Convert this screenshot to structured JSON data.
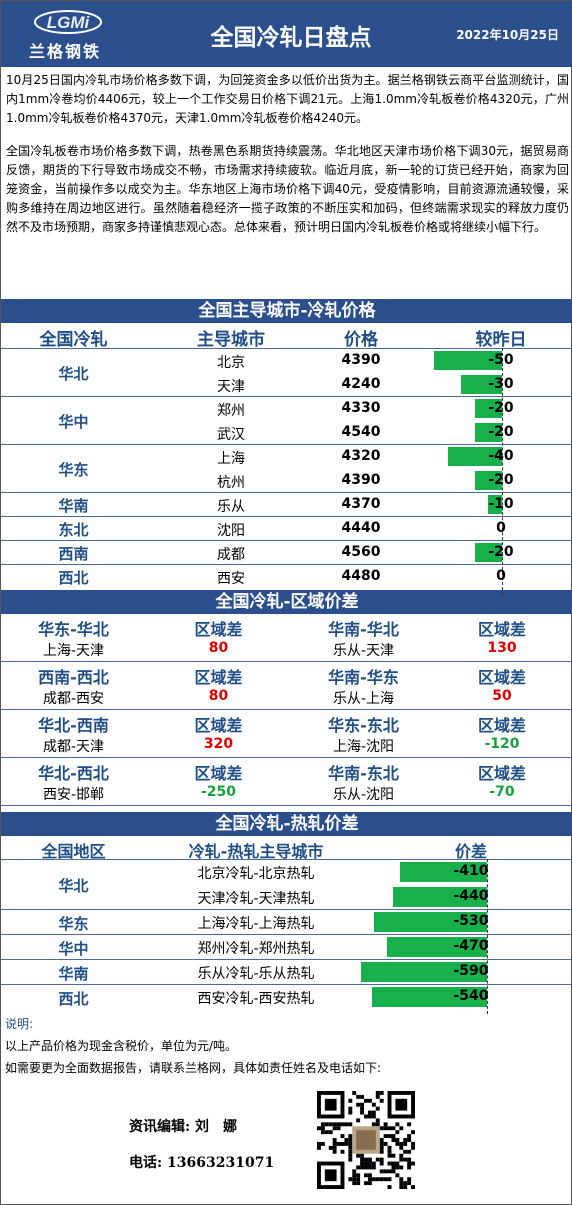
{
  "header": {
    "logo_mark": "LGMi",
    "logo_text": "兰格钢铁",
    "title": "全国冷轧日盘点",
    "date": "2022年10月25日"
  },
  "intro": {
    "p1": "10月25日国内冷轧市场价格多数下调，为回笼资金多以低价出货为主。据兰格钢铁云商平台监测统计，国内1mm冷卷均价4406元，较上一个工作交易日价格下调21元。上海1.0mm冷轧板卷价格4320元，广州1.0mm冷轧板卷价格4370元，天津1.0mm冷轧板卷价格4240元。",
    "p2": "全国冷轧板卷市场价格多数下调，热卷黑色系期货持续震荡。华北地区天津市场价格下调30元，据贸易商反馈，期货的下行导致市场成交不畅，市场需求持续疲软。临近月底，新一轮的订货已经开始，商家为回笼资金，当前操作多以成交为主。华东地区上海市场价格下调40元，受疫情影响，目前资源流通较慢，采购多维持在周边地区进行。虽然随着稳经济一揽子政策的不断压实和加码，但终端需求现实的释放力度仍然不及市场预期，商家多持谨慎悲观心态。总体来看，预计明日国内冷轧板卷价格或将继续小幅下行。"
  },
  "table1": {
    "section_title": "全国主导城市-冷轧价格",
    "headers": {
      "region": "全国冷轧",
      "city": "主导城市",
      "price": "价格",
      "change": "较昨日"
    },
    "groups": [
      {
        "region": "华北",
        "rows": [
          {
            "city": "北京",
            "price": "4390",
            "change": -50
          },
          {
            "city": "天津",
            "price": "4240",
            "change": -30
          }
        ]
      },
      {
        "region": "华中",
        "rows": [
          {
            "city": "郑州",
            "price": "4330",
            "change": -20
          },
          {
            "city": "武汉",
            "price": "4540",
            "change": -20
          }
        ]
      },
      {
        "region": "华东",
        "rows": [
          {
            "city": "上海",
            "price": "4320",
            "change": -40
          },
          {
            "city": "杭州",
            "price": "4390",
            "change": -20
          }
        ]
      },
      {
        "region": "华南",
        "rows": [
          {
            "city": "乐从",
            "price": "4370",
            "change": -10
          }
        ]
      },
      {
        "region": "东北",
        "rows": [
          {
            "city": "沈阳",
            "price": "4440",
            "change": 0
          }
        ]
      },
      {
        "region": "西南",
        "rows": [
          {
            "city": "成都",
            "price": "4560",
            "change": -20
          }
        ]
      },
      {
        "region": "西北",
        "rows": [
          {
            "city": "西安",
            "price": "4480",
            "change": 0
          }
        ]
      }
    ]
  },
  "table2": {
    "section_title": "全国冷轧-区域价差",
    "diff_label": "区域差",
    "rows": [
      {
        "left": {
          "pair": "华东-华北",
          "cities": "上海-天津",
          "value": 80
        },
        "right": {
          "pair": "华南-华北",
          "cities": "乐从-天津",
          "value": 130
        }
      },
      {
        "left": {
          "pair": "西南-西北",
          "cities": "成都-西安",
          "value": 80
        },
        "right": {
          "pair": "华南-华东",
          "cities": "乐从-上海",
          "value": 50
        }
      },
      {
        "left": {
          "pair": "华北-西南",
          "cities": "成都-天津",
          "value": 320
        },
        "right": {
          "pair": "华东-东北",
          "cities": "上海-沈阳",
          "value": -120
        }
      },
      {
        "left": {
          "pair": "华北-西北",
          "cities": "西安-邯郸",
          "value": -250
        },
        "right": {
          "pair": "华南-东北",
          "cities": "乐从-沈阳",
          "value": -70
        }
      }
    ]
  },
  "table3": {
    "section_title": "全国冷轧-热轧价差",
    "headers": {
      "region": "全国地区",
      "pair": "冷轧-热轧主导城市",
      "diff": "价差"
    },
    "groups": [
      {
        "region": "华北",
        "rows": [
          {
            "pair": "北京冷轧-北京热轧",
            "diff": -410
          },
          {
            "pair": "天津冷轧-天津热轧",
            "diff": -440
          }
        ]
      },
      {
        "region": "华东",
        "rows": [
          {
            "pair": "上海冷轧-上海热轧",
            "diff": -530
          }
        ]
      },
      {
        "region": "华中",
        "rows": [
          {
            "pair": "郑州冷轧-郑州热轧",
            "diff": -470
          }
        ]
      },
      {
        "region": "华南",
        "rows": [
          {
            "pair": "乐从冷轧-乐从热轧",
            "diff": -590
          }
        ]
      },
      {
        "region": "西北",
        "rows": [
          {
            "pair": "西安冷轧-西安热轧",
            "diff": -540
          }
        ]
      }
    ]
  },
  "notes": {
    "label": "说明:",
    "line1": "以上产品价格为现金含税价，单位为元/吨。",
    "line2": "如需要更为全面数据报告，请联系兰格网，具体如责任姓名及电话如下:"
  },
  "contact": {
    "editor": "资讯编辑: 刘　娜",
    "phone": "电话: 13663231071"
  },
  "colors": {
    "header_bg": "#2a4f8c",
    "bar_green": "#18b04a",
    "positive": "#e00000",
    "negative": "#18a040"
  }
}
